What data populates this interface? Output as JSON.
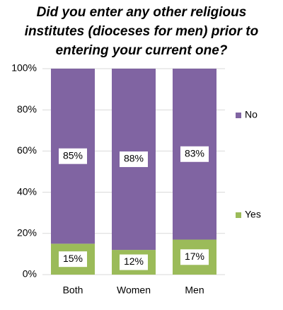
{
  "chart_data": {
    "type": "stacked-bar",
    "title": "Did you enter any other religious institutes (dioceses for men) prior to entering your current one?",
    "categories": [
      "Both",
      "Women",
      "Men"
    ],
    "series": [
      {
        "name": "Yes",
        "color": "#9bbb59",
        "values": [
          15,
          12,
          17
        ],
        "value_labels": [
          "15%",
          "12%",
          "17%"
        ]
      },
      {
        "name": "No",
        "color": "#8064a2",
        "values": [
          85,
          88,
          83
        ],
        "value_labels": [
          "85%",
          "88%",
          "83%"
        ]
      }
    ],
    "ylim": [
      0,
      100
    ],
    "yticks": [
      {
        "value": 0,
        "label": "0%"
      },
      {
        "value": 20,
        "label": "20%"
      },
      {
        "value": 40,
        "label": "40%"
      },
      {
        "value": 60,
        "label": "60%"
      },
      {
        "value": 80,
        "label": "80%"
      },
      {
        "value": 100,
        "label": "100%"
      }
    ],
    "grid": true,
    "legend": "right"
  }
}
